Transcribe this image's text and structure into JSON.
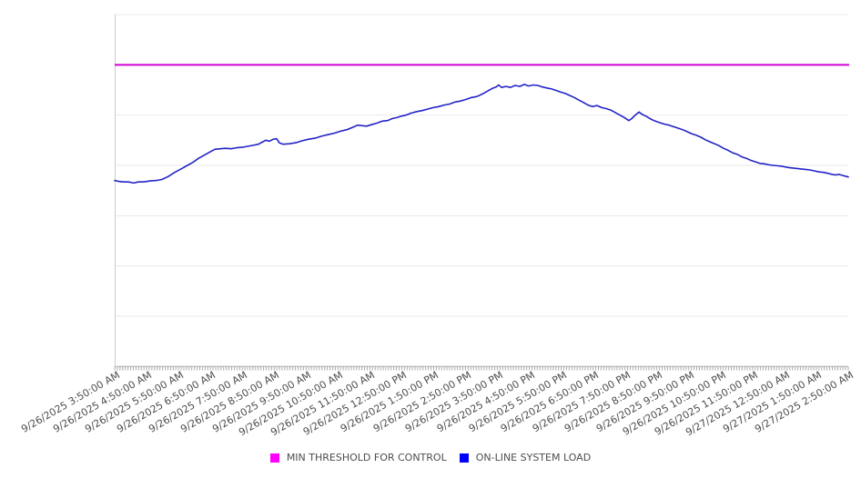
{
  "legend": {
    "items": [
      {
        "label": "MIN THRESHOLD FOR CONTROL",
        "color": "#ff00ff"
      },
      {
        "label": "ON-LINE SYSTEM LOAD",
        "color": "#0000ff"
      }
    ]
  },
  "chart_data": {
    "type": "line",
    "title": "",
    "xlabel": "",
    "ylabel": "",
    "legend_position": "bottom",
    "grid": "horizontal-only",
    "y_axis": {
      "tick_labels_visible": false,
      "gridline_count": 8,
      "ylim": [
        0,
        7
      ]
    },
    "x_axis": {
      "minor_ticks_per_interval": 12,
      "tick_labels": [
        "9/26/2025 3:50:00 AM",
        "9/26/2025 4:50:00 AM",
        "9/26/2025 5:50:00 AM",
        "9/26/2025 6:50:00 AM",
        "9/26/2025 7:50:00 AM",
        "9/26/2025 8:50:00 AM",
        "9/26/2025 9:50:00 AM",
        "9/26/2025 10:50:00 AM",
        "9/26/2025 11:50:00 AM",
        "9/26/2025 12:50:00 PM",
        "9/26/2025 1:50:00 PM",
        "9/26/2025 2:50:00 PM",
        "9/26/2025 3:50:00 PM",
        "9/26/2025 4:50:00 PM",
        "9/26/2025 5:50:00 PM",
        "9/26/2025 6:50:00 PM",
        "9/26/2025 7:50:00 PM",
        "9/26/2025 8:50:00 PM",
        "9/26/2025 9:50:00 PM",
        "9/26/2025 10:50:00 PM",
        "9/26/2025 11:50:00 PM",
        "9/27/2025 12:50:00 AM",
        "9/27/2025 1:50:00 AM",
        "9/27/2025 2:50:00 AM"
      ]
    },
    "series": [
      {
        "name": "MIN THRESHOLD FOR CONTROL",
        "type": "constant-line",
        "stroke": "#d400d4",
        "value": 6.0
      },
      {
        "name": "ON-LINE SYSTEM LOAD",
        "type": "line",
        "stroke": "#2323c8",
        "x_unit": "hours after 9/26/2025 3:50:00 AM",
        "points": [
          [
            0.0,
            3.7
          ],
          [
            0.14,
            3.68
          ],
          [
            0.29,
            3.67
          ],
          [
            0.43,
            3.67
          ],
          [
            0.6,
            3.65
          ],
          [
            0.74,
            3.67
          ],
          [
            0.91,
            3.67
          ],
          [
            1.11,
            3.69
          ],
          [
            1.31,
            3.7
          ],
          [
            1.48,
            3.72
          ],
          [
            1.68,
            3.78
          ],
          [
            1.88,
            3.86
          ],
          [
            2.08,
            3.93
          ],
          [
            2.28,
            4.0
          ],
          [
            2.45,
            4.06
          ],
          [
            2.63,
            4.14
          ],
          [
            2.8,
            4.2
          ],
          [
            2.97,
            4.26
          ],
          [
            3.14,
            4.32
          ],
          [
            3.31,
            4.33
          ],
          [
            3.48,
            4.34
          ],
          [
            3.65,
            4.33
          ],
          [
            3.82,
            4.35
          ],
          [
            4.0,
            4.36
          ],
          [
            4.17,
            4.38
          ],
          [
            4.34,
            4.4
          ],
          [
            4.51,
            4.42
          ],
          [
            4.62,
            4.46
          ],
          [
            4.74,
            4.5
          ],
          [
            4.85,
            4.48
          ],
          [
            4.97,
            4.52
          ],
          [
            5.08,
            4.53
          ],
          [
            5.16,
            4.45
          ],
          [
            5.28,
            4.42
          ],
          [
            5.48,
            4.43
          ],
          [
            5.68,
            4.45
          ],
          [
            5.88,
            4.49
          ],
          [
            6.08,
            4.52
          ],
          [
            6.28,
            4.54
          ],
          [
            6.48,
            4.58
          ],
          [
            6.68,
            4.61
          ],
          [
            6.88,
            4.64
          ],
          [
            7.08,
            4.68
          ],
          [
            7.28,
            4.71
          ],
          [
            7.48,
            4.76
          ],
          [
            7.62,
            4.8
          ],
          [
            7.76,
            4.79
          ],
          [
            7.9,
            4.78
          ],
          [
            8.05,
            4.81
          ],
          [
            8.22,
            4.84
          ],
          [
            8.39,
            4.88
          ],
          [
            8.56,
            4.89
          ],
          [
            8.7,
            4.93
          ],
          [
            8.85,
            4.95
          ],
          [
            8.99,
            4.98
          ],
          [
            9.13,
            5.0
          ],
          [
            9.3,
            5.04
          ],
          [
            9.47,
            5.07
          ],
          [
            9.64,
            5.09
          ],
          [
            9.82,
            5.12
          ],
          [
            9.99,
            5.15
          ],
          [
            10.16,
            5.17
          ],
          [
            10.33,
            5.2
          ],
          [
            10.5,
            5.22
          ],
          [
            10.67,
            5.26
          ],
          [
            10.84,
            5.28
          ],
          [
            11.01,
            5.31
          ],
          [
            11.19,
            5.35
          ],
          [
            11.36,
            5.37
          ],
          [
            11.53,
            5.42
          ],
          [
            11.7,
            5.48
          ],
          [
            11.84,
            5.53
          ],
          [
            11.96,
            5.56
          ],
          [
            12.04,
            5.6
          ],
          [
            12.13,
            5.55
          ],
          [
            12.27,
            5.57
          ],
          [
            12.41,
            5.55
          ],
          [
            12.56,
            5.59
          ],
          [
            12.7,
            5.57
          ],
          [
            12.84,
            5.61
          ],
          [
            12.98,
            5.58
          ],
          [
            13.13,
            5.6
          ],
          [
            13.27,
            5.59
          ],
          [
            13.41,
            5.56
          ],
          [
            13.55,
            5.54
          ],
          [
            13.7,
            5.52
          ],
          [
            13.84,
            5.49
          ],
          [
            13.98,
            5.46
          ],
          [
            14.13,
            5.43
          ],
          [
            14.27,
            5.39
          ],
          [
            14.41,
            5.35
          ],
          [
            14.55,
            5.3
          ],
          [
            14.7,
            5.25
          ],
          [
            14.84,
            5.2
          ],
          [
            14.98,
            5.17
          ],
          [
            15.12,
            5.19
          ],
          [
            15.27,
            5.15
          ],
          [
            15.41,
            5.13
          ],
          [
            15.55,
            5.1
          ],
          [
            15.7,
            5.05
          ],
          [
            15.84,
            5.0
          ],
          [
            15.98,
            4.95
          ],
          [
            16.12,
            4.89
          ],
          [
            16.21,
            4.93
          ],
          [
            16.32,
            5.0
          ],
          [
            16.44,
            5.06
          ],
          [
            16.55,
            5.01
          ],
          [
            16.66,
            4.98
          ],
          [
            16.81,
            4.92
          ],
          [
            16.95,
            4.88
          ],
          [
            17.09,
            4.85
          ],
          [
            17.24,
            4.82
          ],
          [
            17.38,
            4.8
          ],
          [
            17.52,
            4.77
          ],
          [
            17.66,
            4.74
          ],
          [
            17.81,
            4.71
          ],
          [
            17.95,
            4.67
          ],
          [
            18.09,
            4.63
          ],
          [
            18.23,
            4.6
          ],
          [
            18.38,
            4.56
          ],
          [
            18.52,
            4.51
          ],
          [
            18.66,
            4.47
          ],
          [
            18.81,
            4.43
          ],
          [
            18.95,
            4.39
          ],
          [
            19.09,
            4.34
          ],
          [
            19.23,
            4.3
          ],
          [
            19.38,
            4.25
          ],
          [
            19.52,
            4.22
          ],
          [
            19.66,
            4.17
          ],
          [
            19.8,
            4.14
          ],
          [
            19.95,
            4.1
          ],
          [
            20.09,
            4.07
          ],
          [
            20.23,
            4.04
          ],
          [
            20.37,
            4.03
          ],
          [
            20.52,
            4.01
          ],
          [
            20.66,
            4.0
          ],
          [
            20.8,
            3.99
          ],
          [
            20.94,
            3.98
          ],
          [
            21.09,
            3.96
          ],
          [
            21.23,
            3.95
          ],
          [
            21.37,
            3.94
          ],
          [
            21.52,
            3.93
          ],
          [
            21.66,
            3.92
          ],
          [
            21.8,
            3.91
          ],
          [
            21.94,
            3.89
          ],
          [
            22.09,
            3.87
          ],
          [
            22.23,
            3.86
          ],
          [
            22.37,
            3.84
          ],
          [
            22.49,
            3.82
          ],
          [
            22.6,
            3.81
          ],
          [
            22.71,
            3.82
          ],
          [
            22.83,
            3.8
          ],
          [
            23.0,
            3.77
          ]
        ]
      }
    ]
  }
}
